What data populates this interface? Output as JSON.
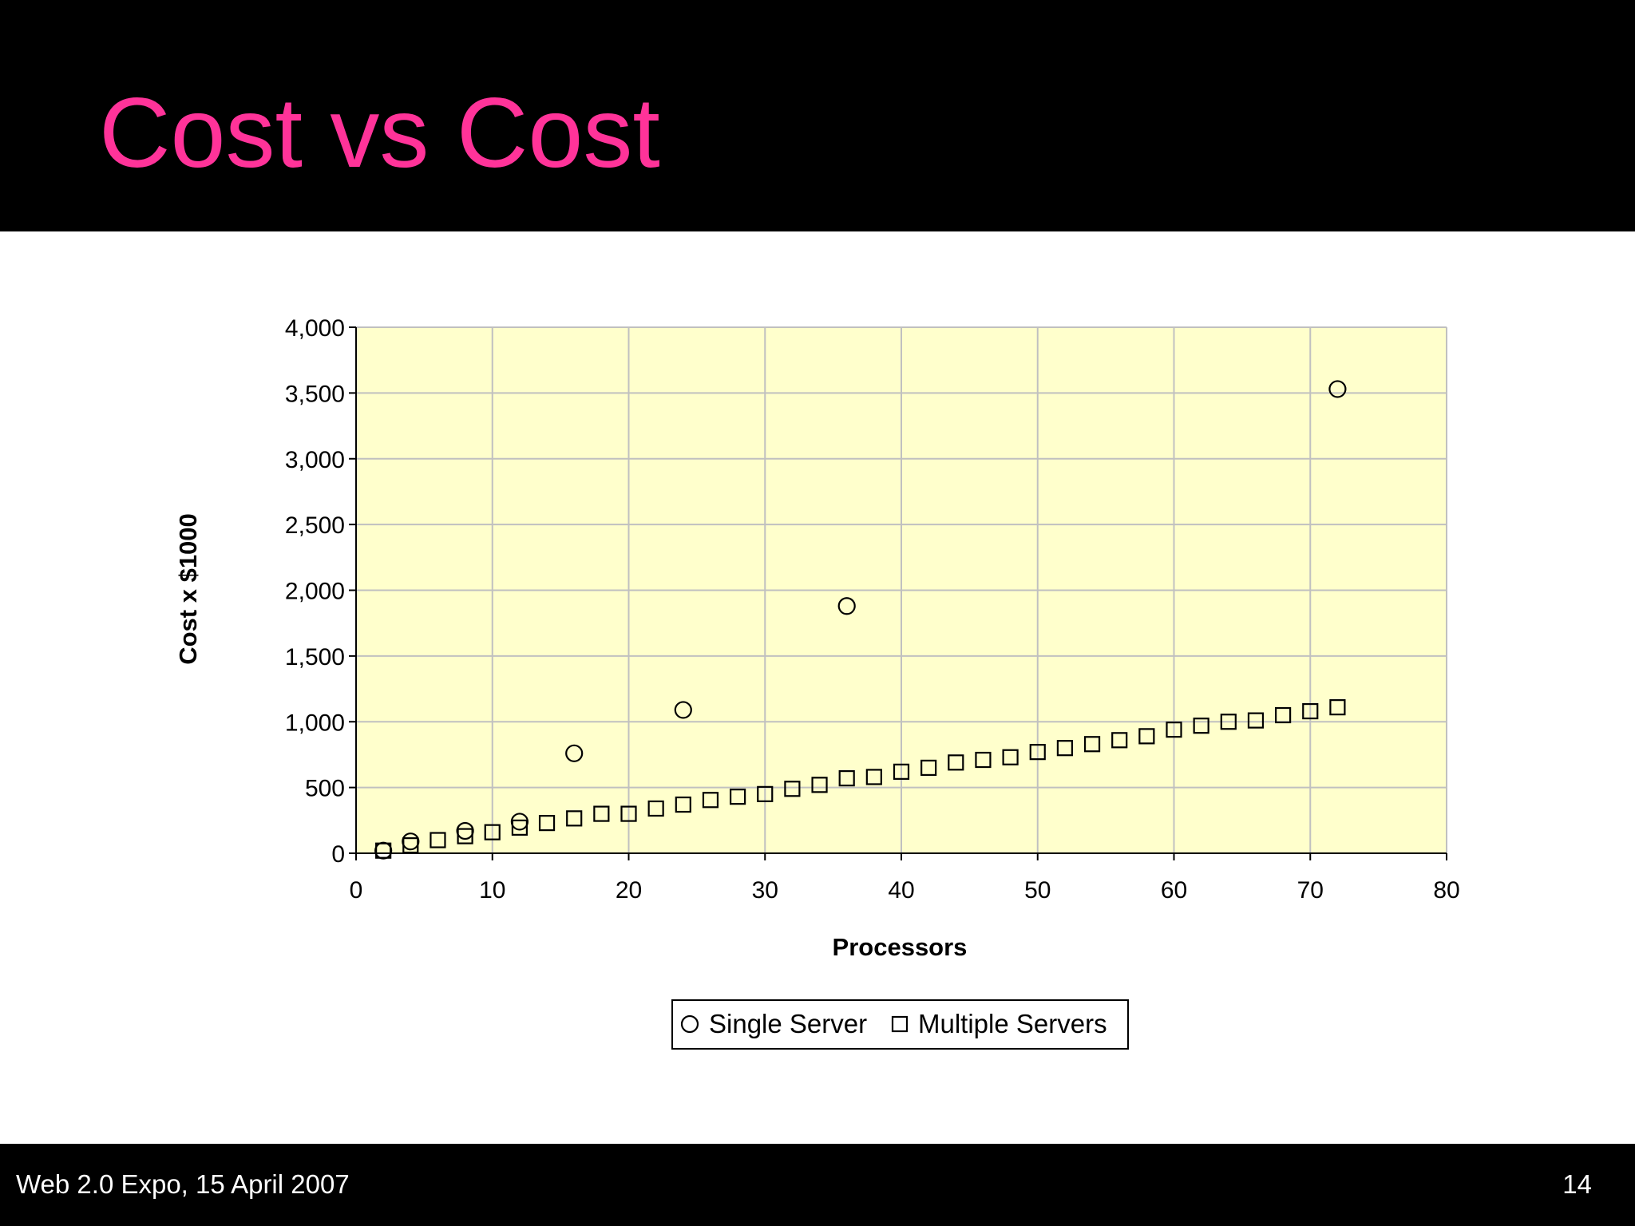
{
  "slide": {
    "title": "Cost vs Cost",
    "footer_left": "Web 2.0 Expo, 15 April 2007",
    "page_number": "14"
  },
  "colors": {
    "header_bg": "#000000",
    "title": "#ff3399",
    "plot_bg": "#ffffcc",
    "gridline": "#c0c0c0",
    "marker": "#000000"
  },
  "chart_data": {
    "type": "scatter",
    "title": "",
    "xlabel": "Processors",
    "ylabel": "Cost x $1000",
    "xlim": [
      0,
      80
    ],
    "ylim": [
      0,
      4000
    ],
    "x_ticks": [
      0,
      10,
      20,
      30,
      40,
      50,
      60,
      70,
      80
    ],
    "x_tick_labels": [
      "0",
      "10",
      "20",
      "30",
      "40",
      "50",
      "60",
      "70",
      "80"
    ],
    "y_ticks": [
      0,
      500,
      1000,
      1500,
      2000,
      2500,
      3000,
      3500,
      4000
    ],
    "y_tick_labels": [
      "0",
      "500",
      "1,000",
      "1,500",
      "2,000",
      "2,500",
      "3,000",
      "3,500",
      "4,000"
    ],
    "grid": true,
    "legend": "bottom",
    "series": [
      {
        "name": "Single Server",
        "marker": "circle",
        "x": [
          2,
          4,
          8,
          12,
          16,
          24,
          36,
          72
        ],
        "y": [
          20,
          90,
          170,
          240,
          760,
          1090,
          1880,
          3530
        ]
      },
      {
        "name": "Multiple Servers",
        "marker": "square",
        "x": [
          2,
          4,
          6,
          8,
          10,
          12,
          14,
          16,
          18,
          20,
          22,
          24,
          26,
          28,
          30,
          32,
          34,
          36,
          38,
          40,
          42,
          44,
          46,
          48,
          50,
          52,
          54,
          56,
          58,
          60,
          62,
          64,
          66,
          68,
          70,
          72
        ],
        "y": [
          20,
          60,
          100,
          130,
          160,
          195,
          230,
          265,
          300,
          300,
          340,
          370,
          405,
          430,
          450,
          490,
          520,
          570,
          580,
          620,
          650,
          690,
          710,
          730,
          770,
          800,
          830,
          860,
          890,
          940,
          970,
          1000,
          1010,
          1050,
          1080,
          1110
        ]
      }
    ]
  }
}
